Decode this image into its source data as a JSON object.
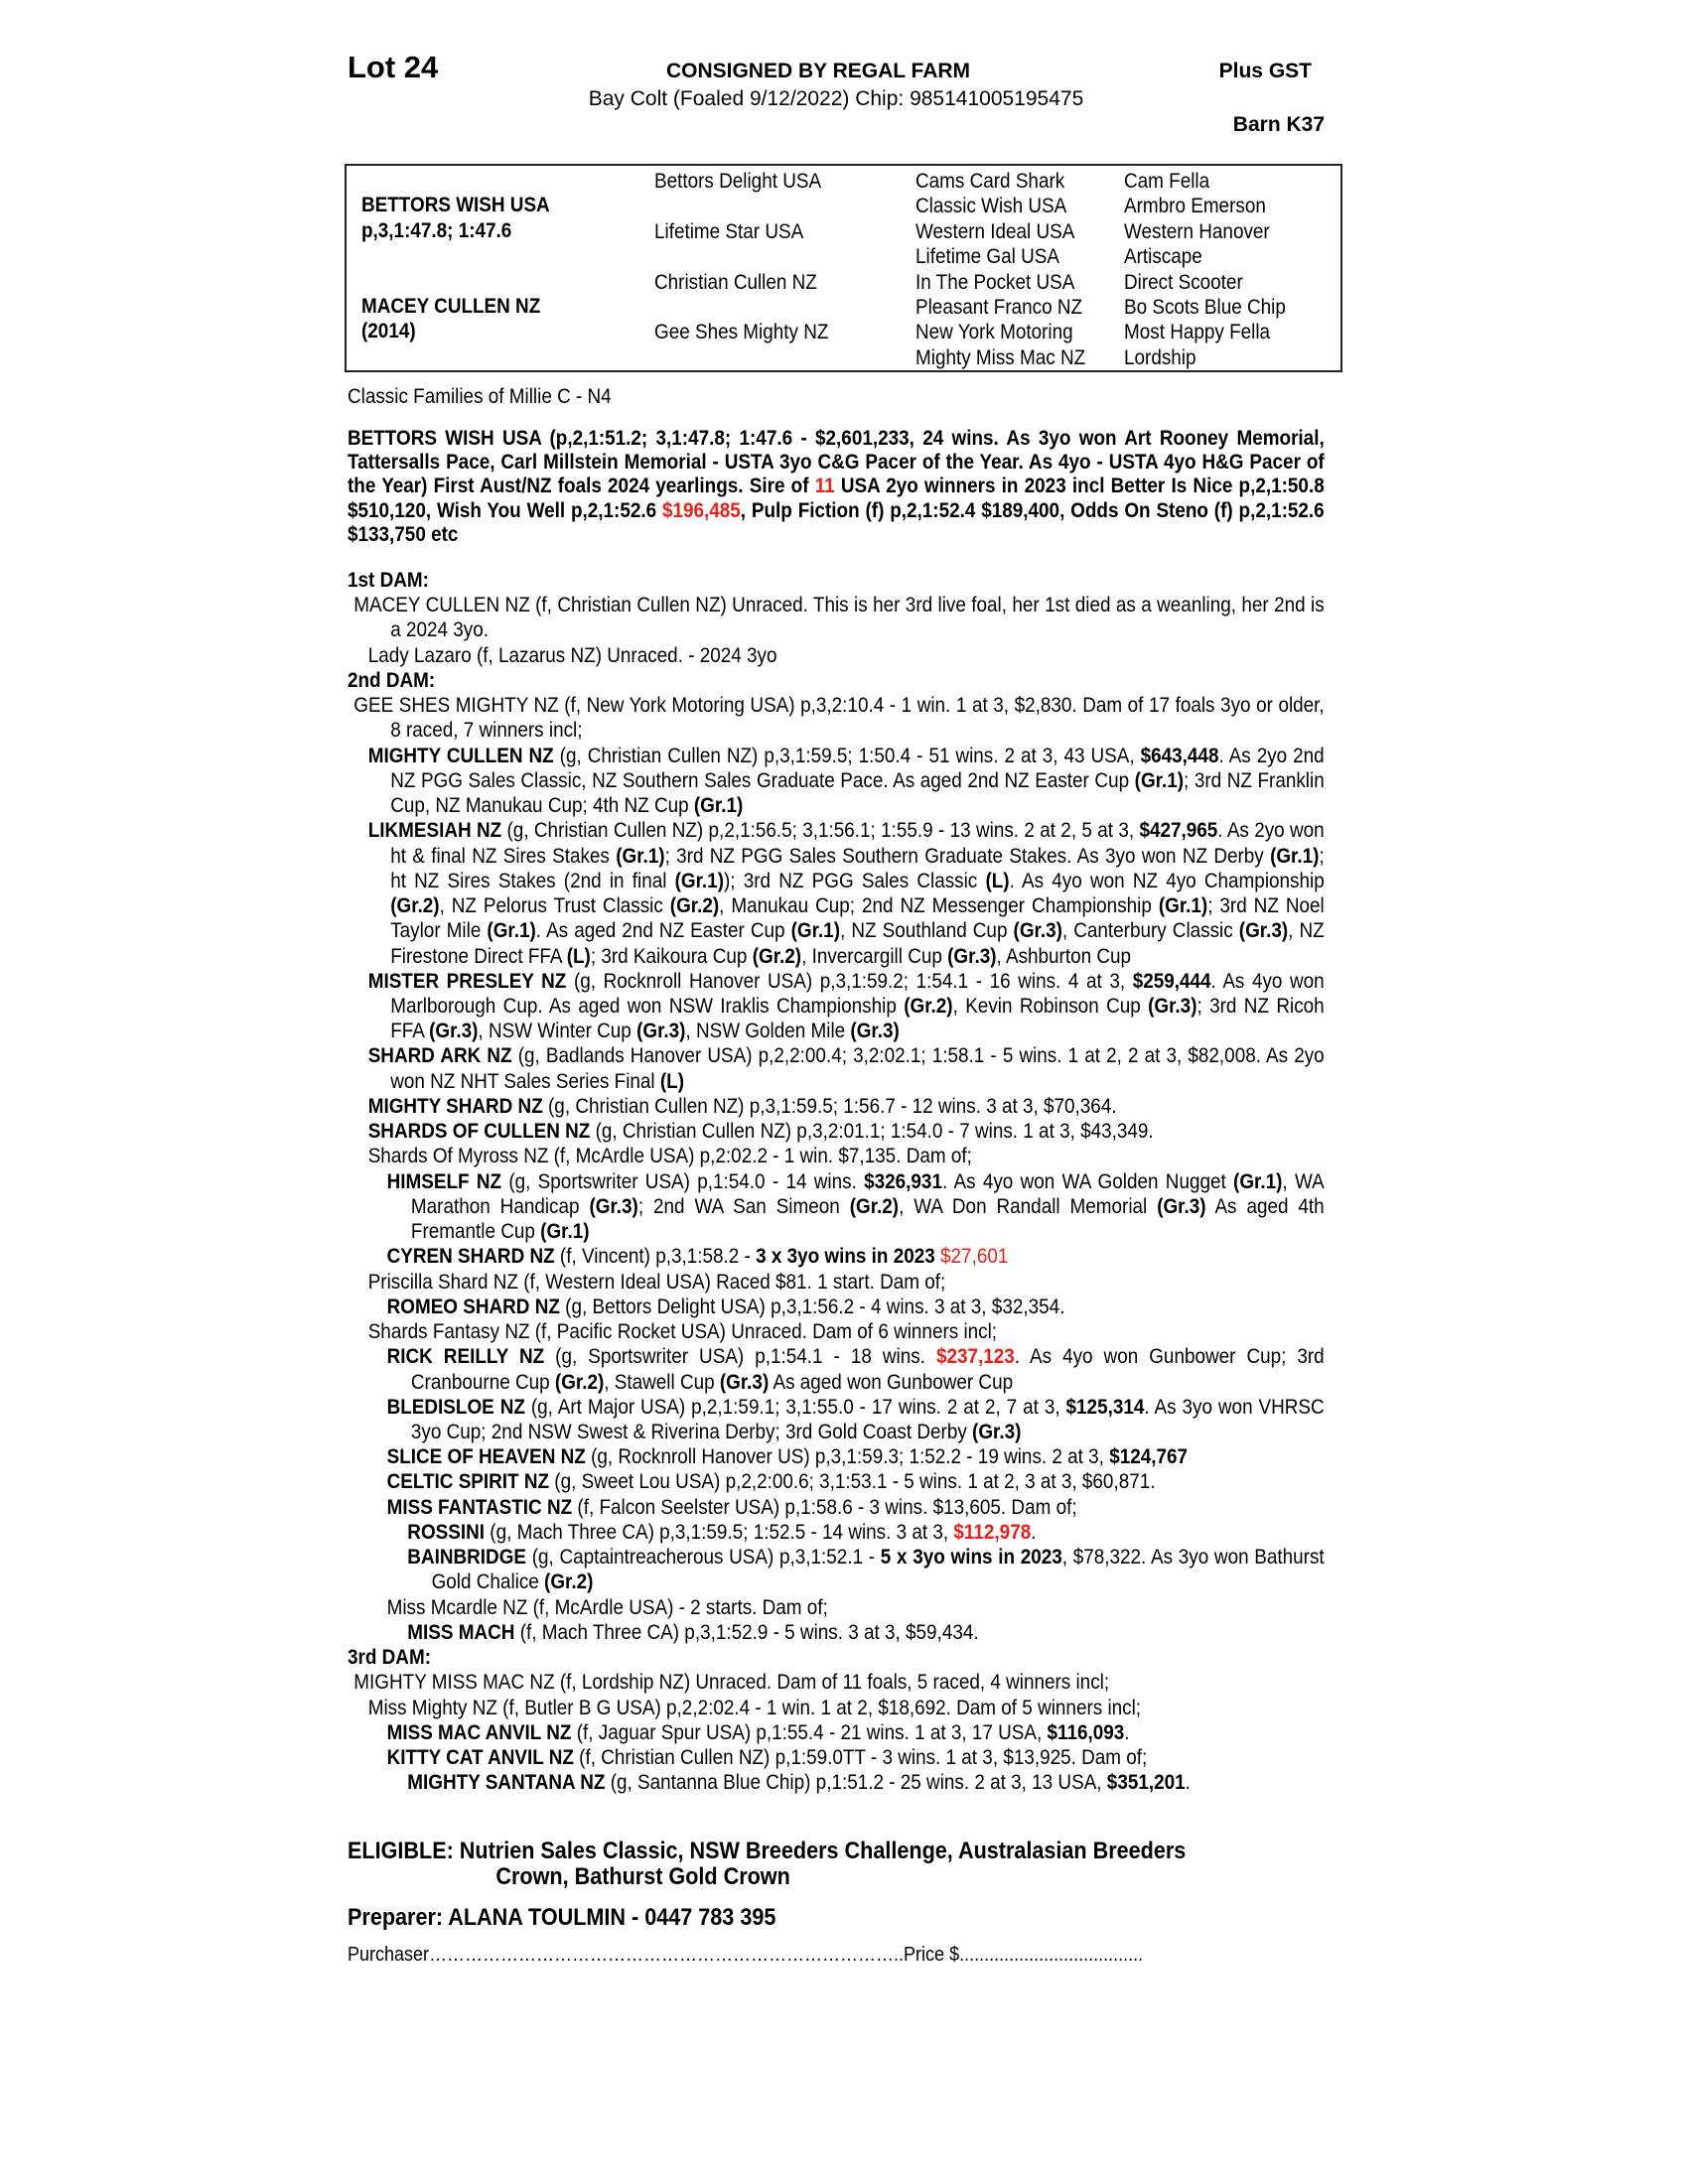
{
  "header": {
    "lot": "Lot 24",
    "consignor": "CONSIGNED BY REGAL FARM",
    "description": "Bay Colt (Foaled 9/12/2022) Chip: 985141005195475",
    "gst": "Plus GST",
    "barn": "Barn K37"
  },
  "pedigree": {
    "sire_name": "BETTORS WISH USA",
    "sire_record": "p,3,1:47.8; 1:47.6",
    "dam_name": "MACEY CULLEN NZ",
    "dam_year": "(2014)",
    "gen2": [
      "Bettors Delight USA",
      "Lifetime Star USA",
      "Christian Cullen NZ",
      "Gee Shes Mighty NZ"
    ],
    "gen3": [
      "Cams Card Shark",
      "Classic Wish USA",
      "Western Ideal USA",
      "Lifetime Gal USA",
      "In The Pocket USA",
      "Pleasant Franco NZ",
      "New York Motoring",
      "Mighty Miss Mac NZ"
    ],
    "gen4": [
      "Cam Fella",
      "Armbro Emerson",
      "Western Hanover",
      "Artiscape",
      "Direct Scooter",
      "Bo Scots Blue Chip",
      "Most Happy Fella",
      "Lordship"
    ]
  },
  "family": "Classic Families of Millie C - N4",
  "sire_para": [
    {
      "t": "BETTORS WISH USA (p,2,1:51.2; 3,1:47.8; 1:47.6 - $2,601,233, 24 wins. As 3yo won Art Rooney Memorial, Tattersalls Pace, Carl Millstein Memorial - USTA 3yo C&G Pacer of the Year. As 4yo - USTA 4yo H&G Pacer of the Year) First Aust/NZ foals 2024 yearlings. Sire of "
    },
    {
      "t": "11",
      "s": "r"
    },
    {
      "t": " USA 2yo winners in 2023 incl Better Is Nice p,2,1:50.8 $510,120, Wish You Well p,2,1:52.6 "
    },
    {
      "t": "$196,485",
      "s": "r"
    },
    {
      "t": ", Pulp Fiction (f) p,2,1:52.4 $189,400, Odds On Steno (f) p,2,1:52.6 $133,750 etc"
    }
  ],
  "dams": [
    {
      "lv": "h",
      "segs": [
        {
          "t": "1st DAM:"
        }
      ]
    },
    {
      "lv": "0",
      "segs": [
        {
          "t": "MACEY CULLEN NZ (f, Christian Cullen NZ) Unraced. This is her 3rd live foal, her 1st died as a weanling, her 2nd is a 2024 3yo."
        }
      ]
    },
    {
      "lv": "1",
      "segs": [
        {
          "t": "Lady Lazaro (f, Lazarus NZ) Unraced. - 2024 3yo"
        }
      ]
    },
    {
      "lv": "h",
      "segs": [
        {
          "t": "2nd DAM:"
        }
      ]
    },
    {
      "lv": "0",
      "segs": [
        {
          "t": "GEE SHES MIGHTY NZ (f, New York Motoring USA) p,3,2:10.4 - 1 win. 1 at 3, $2,830. Dam of 17 foals 3yo or older, 8 raced, 7 winners incl;"
        }
      ]
    },
    {
      "lv": "1",
      "segs": [
        {
          "t": "MIGHTY CULLEN NZ",
          "s": "b"
        },
        {
          "t": " (g, Christian Cullen NZ) p,3,1:59.5; 1:50.4 - 51 wins. 2 at 3, 43 USA, "
        },
        {
          "t": "$643,448",
          "s": "b"
        },
        {
          "t": ". As 2yo 2nd NZ PGG Sales Classic, NZ Southern Sales Graduate Pace. As aged 2nd NZ Easter Cup "
        },
        {
          "t": "(Gr.1)",
          "s": "b"
        },
        {
          "t": "; 3rd NZ Franklin Cup, NZ Manukau Cup; 4th NZ Cup "
        },
        {
          "t": "(Gr.1)",
          "s": "b"
        }
      ]
    },
    {
      "lv": "1",
      "segs": [
        {
          "t": "LIKMESIAH NZ",
          "s": "b"
        },
        {
          "t": " (g, Christian Cullen NZ) p,2,1:56.5; 3,1:56.1; 1:55.9 - 13 wins. 2 at 2, 5 at 3, "
        },
        {
          "t": "$427,965",
          "s": "b"
        },
        {
          "t": ". As 2yo won ht & final NZ Sires Stakes "
        },
        {
          "t": "(Gr.1)",
          "s": "b"
        },
        {
          "t": "; 3rd NZ PGG Sales Southern Graduate Stakes. As 3yo won NZ Derby "
        },
        {
          "t": "(Gr.1)",
          "s": "b"
        },
        {
          "t": "; ht NZ Sires Stakes (2nd in final "
        },
        {
          "t": "(Gr.1)",
          "s": "b"
        },
        {
          "t": "); 3rd NZ PGG Sales Classic "
        },
        {
          "t": "(L)",
          "s": "b"
        },
        {
          "t": ". As 4yo won NZ 4yo Championship "
        },
        {
          "t": "(Gr.2)",
          "s": "b"
        },
        {
          "t": ", NZ Pelorus Trust Classic "
        },
        {
          "t": "(Gr.2)",
          "s": "b"
        },
        {
          "t": ", Manukau Cup; 2nd NZ Messenger Championship "
        },
        {
          "t": "(Gr.1)",
          "s": "b"
        },
        {
          "t": "; 3rd NZ Noel Taylor Mile "
        },
        {
          "t": "(Gr.1)",
          "s": "b"
        },
        {
          "t": ". As aged 2nd NZ Easter Cup "
        },
        {
          "t": "(Gr.1)",
          "s": "b"
        },
        {
          "t": ", NZ Southland Cup "
        },
        {
          "t": "(Gr.3)",
          "s": "b"
        },
        {
          "t": ", Canterbury Classic "
        },
        {
          "t": "(Gr.3)",
          "s": "b"
        },
        {
          "t": ", NZ Firestone Direct FFA "
        },
        {
          "t": "(L)",
          "s": "b"
        },
        {
          "t": "; 3rd Kaikoura Cup "
        },
        {
          "t": "(Gr.2)",
          "s": "b"
        },
        {
          "t": ", Invercargill Cup "
        },
        {
          "t": "(Gr.3)",
          "s": "b"
        },
        {
          "t": ", Ashburton Cup"
        }
      ]
    },
    {
      "lv": "1",
      "segs": [
        {
          "t": "MISTER PRESLEY NZ",
          "s": "b"
        },
        {
          "t": " (g, Rocknroll Hanover USA) p,3,1:59.2; 1:54.1 - 16 wins. 4 at 3, "
        },
        {
          "t": "$259,444",
          "s": "b"
        },
        {
          "t": ". As 4yo won Marlborough Cup. As aged won NSW Iraklis Championship "
        },
        {
          "t": "(Gr.2)",
          "s": "b"
        },
        {
          "t": ", Kevin Robinson Cup "
        },
        {
          "t": "(Gr.3)",
          "s": "b"
        },
        {
          "t": "; 3rd NZ Ricoh FFA "
        },
        {
          "t": "(Gr.3)",
          "s": "b"
        },
        {
          "t": ", NSW Winter Cup "
        },
        {
          "t": "(Gr.3)",
          "s": "b"
        },
        {
          "t": ", NSW Golden Mile "
        },
        {
          "t": "(Gr.3)",
          "s": "b"
        }
      ]
    },
    {
      "lv": "1",
      "segs": [
        {
          "t": "SHARD ARK NZ",
          "s": "b"
        },
        {
          "t": " (g, Badlands Hanover USA) p,2,2:00.4; 3,2:02.1; 1:58.1 - 5 wins. 1 at 2, 2 at 3, $82,008. As 2yo won NZ NHT Sales Series Final "
        },
        {
          "t": "(L)",
          "s": "b"
        }
      ]
    },
    {
      "lv": "1",
      "segs": [
        {
          "t": "MIGHTY SHARD NZ",
          "s": "b"
        },
        {
          "t": " (g, Christian Cullen NZ) p,3,1:59.5; 1:56.7 - 12 wins. 3 at 3, $70,364."
        }
      ]
    },
    {
      "lv": "1",
      "segs": [
        {
          "t": "SHARDS OF CULLEN NZ",
          "s": "b"
        },
        {
          "t": " (g, Christian Cullen NZ) p,3,2:01.1; 1:54.0 - 7 wins. 1 at 3, $43,349."
        }
      ]
    },
    {
      "lv": "1",
      "segs": [
        {
          "t": "Shards Of Myross NZ (f, McArdle USA) p,2:02.2 - 1 win. $7,135. Dam of;"
        }
      ]
    },
    {
      "lv": "2",
      "segs": [
        {
          "t": "HIMSELF NZ",
          "s": "b"
        },
        {
          "t": " (g, Sportswriter USA) p,1:54.0 - 14 wins. "
        },
        {
          "t": "$326,931",
          "s": "b"
        },
        {
          "t": ". As 4yo won WA Golden Nugget "
        },
        {
          "t": "(Gr.1)",
          "s": "b"
        },
        {
          "t": ", WA Marathon Handicap "
        },
        {
          "t": "(Gr.3)",
          "s": "b"
        },
        {
          "t": "; 2nd WA San Simeon "
        },
        {
          "t": "(Gr.2)",
          "s": "b"
        },
        {
          "t": ", WA Don Randall Memorial "
        },
        {
          "t": "(Gr.3)",
          "s": "b"
        },
        {
          "t": " As aged 4th Fremantle Cup "
        },
        {
          "t": "(Gr.1)",
          "s": "b"
        }
      ]
    },
    {
      "lv": "2",
      "segs": [
        {
          "t": "CYREN SHARD NZ",
          "s": "b"
        },
        {
          "t": " (f, Vincent) p,3,1:58.2 - "
        },
        {
          "t": "3 x 3yo wins in 2023",
          "s": "b"
        },
        {
          "t": " "
        },
        {
          "t": "$27,601",
          "s": "r"
        }
      ]
    },
    {
      "lv": "1",
      "segs": [
        {
          "t": "Priscilla Shard NZ (f, Western Ideal USA) Raced $81. 1 start. Dam of;"
        }
      ]
    },
    {
      "lv": "2",
      "segs": [
        {
          "t": "ROMEO SHARD NZ",
          "s": "b"
        },
        {
          "t": " (g, Bettors Delight USA) p,3,1:56.2 - 4 wins. 3 at 3, $32,354."
        }
      ]
    },
    {
      "lv": "1",
      "segs": [
        {
          "t": "Shards Fantasy NZ (f, Pacific Rocket USA) Unraced. Dam of 6 winners incl;"
        }
      ]
    },
    {
      "lv": "2",
      "segs": [
        {
          "t": "RICK REILLY NZ",
          "s": "b"
        },
        {
          "t": " (g, Sportswriter USA) p,1:54.1 - 18 wins. "
        },
        {
          "t": "$237,123",
          "s": "br"
        },
        {
          "t": ". As 4yo won Gunbower Cup; 3rd Cranbourne Cup "
        },
        {
          "t": "(Gr.2)",
          "s": "b"
        },
        {
          "t": ", Stawell Cup "
        },
        {
          "t": "(Gr.3)",
          "s": "b"
        },
        {
          "t": " As aged won Gunbower Cup"
        }
      ]
    },
    {
      "lv": "2",
      "segs": [
        {
          "t": "BLEDISLOE NZ",
          "s": "b"
        },
        {
          "t": " (g, Art Major USA) p,2,1:59.1; 3,1:55.0 - 17 wins. 2 at 2, 7 at 3, "
        },
        {
          "t": "$125,314",
          "s": "b"
        },
        {
          "t": ". As 3yo won VHRSC 3yo Cup; 2nd NSW Swest & Riverina Derby; 3rd Gold Coast Derby "
        },
        {
          "t": "(Gr.3)",
          "s": "b"
        }
      ]
    },
    {
      "lv": "2",
      "segs": [
        {
          "t": "SLICE OF HEAVEN NZ",
          "s": "b"
        },
        {
          "t": " (g, Rocknroll Hanover US) p,3,1:59.3; 1:52.2 - 19 wins. 2 at 3, "
        },
        {
          "t": "$124,767",
          "s": "b"
        }
      ]
    },
    {
      "lv": "2",
      "segs": [
        {
          "t": "CELTIC SPIRIT NZ",
          "s": "b"
        },
        {
          "t": " (g, Sweet Lou USA) p,2,2:00.6; 3,1:53.1 - 5 wins. 1 at 2, 3 at 3, $60,871."
        }
      ]
    },
    {
      "lv": "2",
      "segs": [
        {
          "t": "MISS FANTASTIC NZ",
          "s": "b"
        },
        {
          "t": " (f, Falcon Seelster USA) p,1:58.6 - 3 wins. $13,605. Dam of;"
        }
      ]
    },
    {
      "lv": "3",
      "segs": [
        {
          "t": "ROSSINI",
          "s": "b"
        },
        {
          "t": " (g, Mach Three CA) p,3,1:59.5; 1:52.5 - 14 wins. 3 at 3, "
        },
        {
          "t": "$112,978",
          "s": "br"
        },
        {
          "t": "."
        }
      ]
    },
    {
      "lv": "3",
      "segs": [
        {
          "t": "BAINBRIDGE",
          "s": "b"
        },
        {
          "t": " (g, Captaintreacherous USA) p,3,1:52.1 - "
        },
        {
          "t": "5 x 3yo wins in 2023",
          "s": "b"
        },
        {
          "t": ", $78,322. As 3yo won Bathurst Gold Chalice "
        },
        {
          "t": "(Gr.2)",
          "s": "b"
        }
      ]
    },
    {
      "lv": "2",
      "segs": [
        {
          "t": "Miss Mcardle NZ (f, McArdle USA) - 2 starts. Dam of;"
        }
      ]
    },
    {
      "lv": "3",
      "segs": [
        {
          "t": "MISS MACH",
          "s": "b"
        },
        {
          "t": " (f, Mach Three CA) p,3,1:52.9 - 5 wins. 3 at 3, $59,434."
        }
      ]
    },
    {
      "lv": "h",
      "segs": [
        {
          "t": "3rd DAM:"
        }
      ]
    },
    {
      "lv": "0",
      "segs": [
        {
          "t": "MIGHTY MISS MAC NZ (f, Lordship NZ) Unraced. Dam of 11 foals, 5 raced, 4 winners incl;"
        }
      ]
    },
    {
      "lv": "1",
      "segs": [
        {
          "t": "Miss Mighty NZ (f, Butler B G USA) p,2,2:02.4 - 1 win. 1 at 2, $18,692. Dam of 5 winners incl;"
        }
      ]
    },
    {
      "lv": "2",
      "segs": [
        {
          "t": "MISS MAC ANVIL NZ",
          "s": "b"
        },
        {
          "t": " (f, Jaguar Spur USA) p,1:55.4 - 21 wins. 1 at 3, 17 USA, "
        },
        {
          "t": "$116,093",
          "s": "b"
        },
        {
          "t": "."
        }
      ]
    },
    {
      "lv": "2",
      "segs": [
        {
          "t": "KITTY CAT ANVIL NZ",
          "s": "b"
        },
        {
          "t": " (f, Christian Cullen NZ) p,1:59.0TT - 3 wins. 1 at 3, $13,925. Dam of;"
        }
      ]
    },
    {
      "lv": "3",
      "segs": [
        {
          "t": "MIGHTY SANTANA NZ",
          "s": "b"
        },
        {
          "t": " (g, Santanna Blue Chip) p,1:51.2 - 25 wins. 2 at 3, 13 USA, "
        },
        {
          "t": "$351,201",
          "s": "b"
        },
        {
          "t": "."
        }
      ]
    }
  ],
  "eligible": {
    "line1": "ELIGIBLE: Nutrien Sales Classic, NSW Breeders Challenge, Australasian Breeders",
    "line2": "Crown, Bathurst Gold Crown"
  },
  "preparer": "Preparer: ALANA TOULMIN - 0447 783 395",
  "purchaser": {
    "label": "Purchaser",
    "dots": "……………………………………………………………………..",
    "price_label": "Price $",
    "price_dots": "....................................."
  },
  "colors": {
    "highlight_red": "#e8201c",
    "text": "#000000",
    "border": "#222222"
  }
}
